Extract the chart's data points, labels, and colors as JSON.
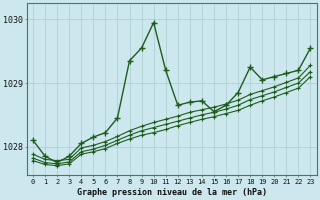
{
  "xlabel": "Graphe pression niveau de la mer (hPa)",
  "background_color": "#cce8ee",
  "grid_color": "#aacccc",
  "line_color": "#1e5c1e",
  "x_ticks": [
    0,
    1,
    2,
    3,
    4,
    5,
    6,
    7,
    8,
    9,
    10,
    11,
    12,
    13,
    14,
    15,
    16,
    17,
    18,
    19,
    20,
    21,
    22,
    23
  ],
  "ylim": [
    1027.55,
    1030.25
  ],
  "yticks": [
    1028,
    1029,
    1030
  ],
  "spiky_y": [
    1028.1,
    1027.85,
    1027.75,
    1027.85,
    1028.05,
    1028.15,
    1028.22,
    1028.45,
    1029.35,
    1029.55,
    1029.95,
    1029.2,
    1028.65,
    1028.7,
    1028.72,
    1028.55,
    1028.65,
    1028.85,
    1029.25,
    1029.05,
    1029.1,
    1029.15,
    1029.2,
    1029.55
  ],
  "bundle": [
    [
      1027.78,
      1027.72,
      1027.7,
      1027.73,
      1027.88,
      1027.92,
      1027.97,
      1028.05,
      1028.12,
      1028.18,
      1028.22,
      1028.27,
      1028.33,
      1028.38,
      1028.43,
      1028.47,
      1028.52,
      1028.57,
      1028.65,
      1028.72,
      1028.78,
      1028.85,
      1028.92,
      1029.1
    ],
    [
      1027.82,
      1027.75,
      1027.73,
      1027.76,
      1027.92,
      1027.96,
      1028.02,
      1028.1,
      1028.18,
      1028.25,
      1028.3,
      1028.35,
      1028.4,
      1028.45,
      1028.5,
      1028.54,
      1028.59,
      1028.65,
      1028.74,
      1028.8,
      1028.86,
      1028.93,
      1029.0,
      1029.18
    ],
    [
      1027.88,
      1027.8,
      1027.78,
      1027.8,
      1027.98,
      1028.02,
      1028.08,
      1028.16,
      1028.25,
      1028.32,
      1028.38,
      1028.43,
      1028.48,
      1028.54,
      1028.58,
      1028.62,
      1028.67,
      1028.73,
      1028.82,
      1028.88,
      1028.94,
      1029.01,
      1029.08,
      1029.28
    ]
  ]
}
